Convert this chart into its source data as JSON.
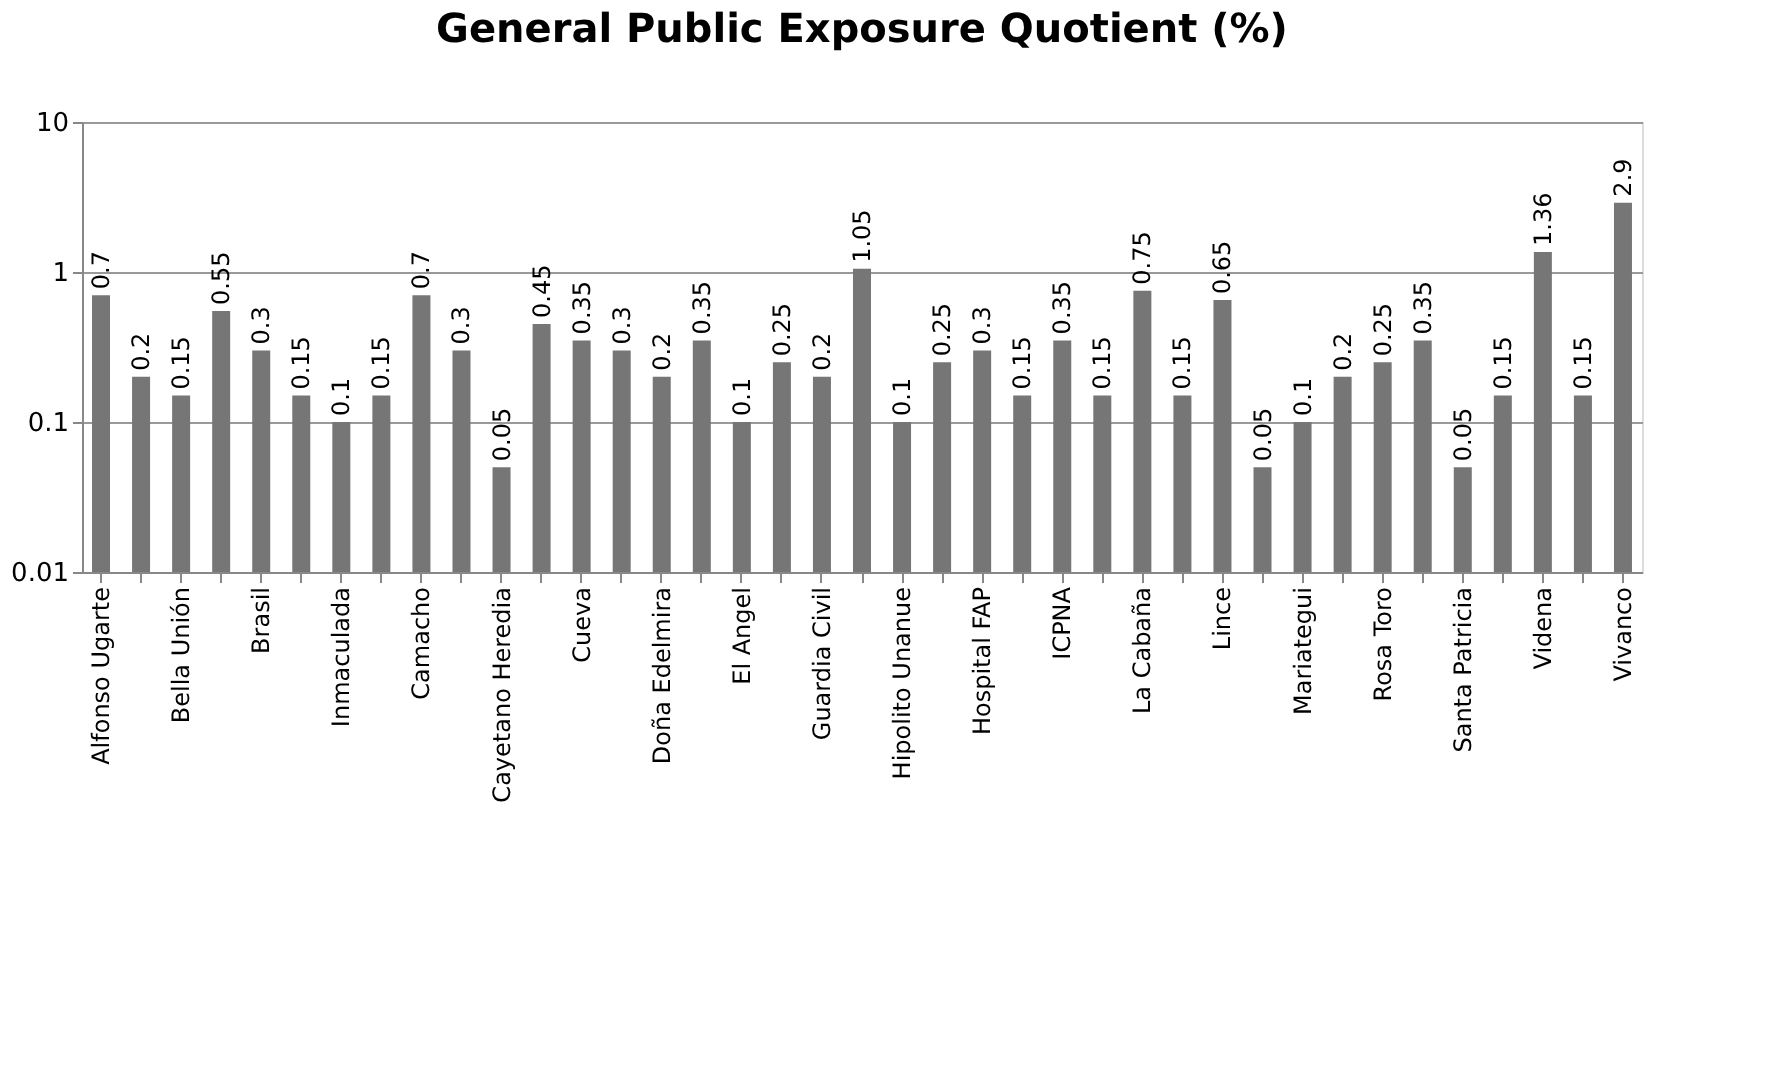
{
  "chart_data": {
    "type": "bar",
    "title": "General Public Exposure Quotient (%)",
    "categories": [
      "Alfonso Ugarte",
      null,
      "Bella Unión",
      null,
      "Brasil",
      null,
      "Inmaculada",
      null,
      "Camacho",
      null,
      "Cayetano Heredia",
      null,
      "Cueva",
      null,
      "Doña Edelmira",
      null,
      "El Angel",
      null,
      "Guardia Civil",
      null,
      "Hipolito Unanue",
      null,
      "Hospital FAP",
      null,
      "ICPNA",
      null,
      "La Cabaña",
      null,
      "Lince",
      null,
      "Mariategui",
      null,
      "Rosa Toro",
      null,
      "Santa Patricia",
      null,
      "Videna",
      null,
      "Vivanco"
    ],
    "values": [
      0.7,
      0.2,
      0.15,
      0.55,
      0.3,
      0.15,
      0.1,
      0.15,
      0.7,
      0.3,
      0.05,
      0.45,
      0.35,
      0.3,
      0.2,
      0.35,
      0.1,
      0.25,
      0.2,
      1.05,
      0.1,
      0.25,
      0.3,
      0.15,
      0.35,
      0.15,
      0.75,
      0.15,
      0.65,
      0.05,
      0.1,
      0.2,
      0.25,
      0.35,
      0.05,
      0.15,
      1.36,
      0.15,
      2.9
    ],
    "color": "#767676",
    "log": true,
    "ylim": [
      0.01,
      10
    ],
    "yticks": [
      0.01,
      0.1,
      1,
      10
    ],
    "grid": "y",
    "data_labels": true
  }
}
